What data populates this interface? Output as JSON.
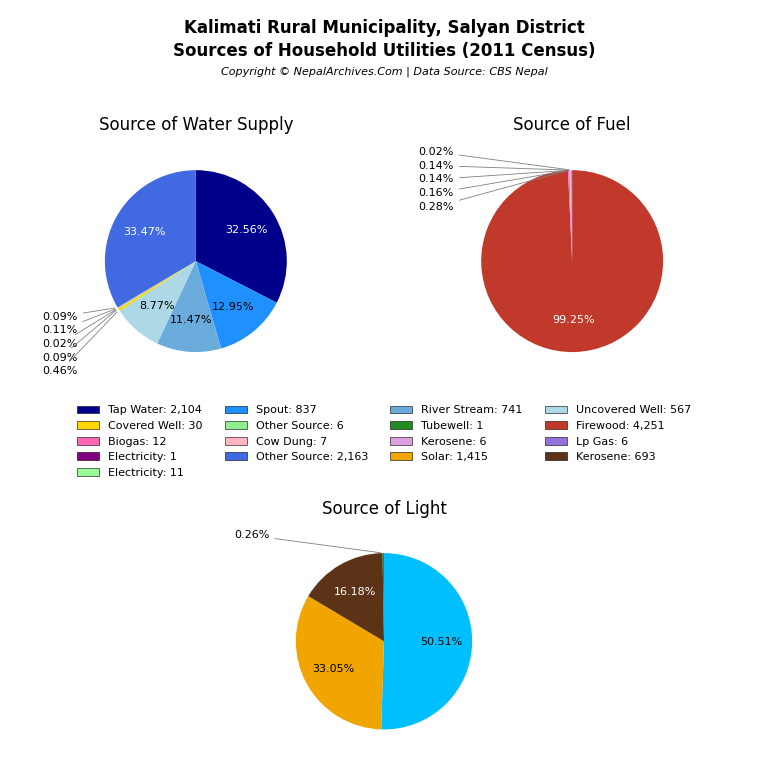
{
  "title": "Kalimati Rural Municipality, Salyan District",
  "subtitle": "Sources of Household Utilities (2011 Census)",
  "annotations": [
    "Copyright © NepalArchives.Com | Data Source: CBS Nepal"
  ],
  "legend": "center",
  "series": [
    {
      "name": "Tap Water: 2,104",
      "color": "#00008B"
    },
    {
      "name": "Covered Well: 30",
      "color": "#FFD700"
    },
    {
      "name": "Biogas: 12",
      "color": "#FF69B4"
    },
    {
      "name": "Electricity: 1",
      "color": "#800080"
    },
    {
      "name": "Electricity: 11",
      "color": "#98FB98"
    },
    {
      "name": "Spout: 837",
      "color": "#1E90FF"
    },
    {
      "name": "Other Source: 6",
      "color": "#90EE90"
    },
    {
      "name": "Cow Dung: 7",
      "color": "#FFB6C1"
    },
    {
      "name": "Other Source: 2,163",
      "color": "#4169E1"
    },
    {
      "name": "River Stream: 741",
      "color": "#6AABDB"
    },
    {
      "name": "Tubewell: 1",
      "color": "#228B22"
    },
    {
      "name": "Kerosene: 6",
      "color": "#DDA0DD"
    },
    {
      "name": "Solar: 1,415",
      "color": "#F0A500"
    },
    {
      "name": "Uncovered Well: 567",
      "color": "#ADD8E6"
    },
    {
      "name": "Firewood: 4,251",
      "color": "#C0392B"
    },
    {
      "name": "Lp Gas: 6",
      "color": "#9370DB"
    },
    {
      "name": "Kerosene: 693",
      "color": "#5C3317"
    }
  ],
  "chart_data": [
    {
      "type": "pie",
      "title": "Source of Water Supply",
      "values": [
        32.56,
        12.95,
        11.47,
        8.77,
        0.46,
        0.09,
        0.02,
        0.11,
        0.09,
        33.47
      ],
      "value_labels": [
        "32.56%",
        "12.95%",
        "11.47%",
        "8.77%",
        "0.46%",
        "0.09%",
        "0.02%",
        "0.11%",
        "0.09%",
        "33.47%"
      ],
      "colors": [
        "#00008B",
        "#1E90FF",
        "#6AABDB",
        "#ADD8E6",
        "#FFD700",
        "#90EE90",
        "#FF1493",
        "#FFB6C1",
        "#20B2AA",
        "#4169E1"
      ],
      "data_labels": true
    },
    {
      "type": "pie",
      "title": "Source of Fuel",
      "values": [
        99.25,
        0.28,
        0.16,
        0.14,
        0.14,
        0.02
      ],
      "value_labels": [
        "99.25%",
        "0.28%",
        "0.16%",
        "0.14%",
        "0.14%",
        "0.02%"
      ],
      "colors": [
        "#C0392B",
        "#FF69B4",
        "#FFB6C1",
        "#DDA0DD",
        "#9370DB",
        "#800080"
      ],
      "data_labels": true
    },
    {
      "type": "pie",
      "title": "Source of Light",
      "values": [
        50.51,
        33.05,
        16.18,
        0.26
      ],
      "value_labels": [
        "50.51%",
        "33.05%",
        "16.18%",
        "0.26%"
      ],
      "colors": [
        "#00BFFF",
        "#F0A500",
        "#5C3317",
        "#228B22"
      ],
      "data_labels": true
    }
  ]
}
